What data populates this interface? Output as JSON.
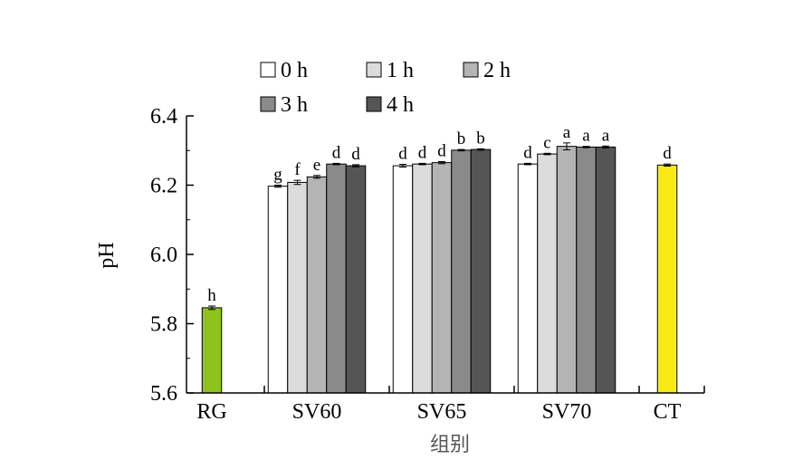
{
  "chart_data": {
    "type": "bar",
    "title": "",
    "xlabel": "组别",
    "ylabel": "pH",
    "ylim": [
      5.6,
      6.4
    ],
    "yticks": [
      "5.6",
      "5.8",
      "6.0",
      "6.2",
      "6.4"
    ],
    "legend_position": "top",
    "series": [
      {
        "name": "0 h",
        "color": "#ffffff"
      },
      {
        "name": "1 h",
        "color": "#dcdcdc"
      },
      {
        "name": "2 h",
        "color": "#b4b4b4"
      },
      {
        "name": "3 h",
        "color": "#8a8a8a"
      },
      {
        "name": "4 h",
        "color": "#555555"
      }
    ],
    "groups": [
      {
        "label": "RG",
        "bars": [
          {
            "series": null,
            "color": "#8dc21f",
            "value": 5.846,
            "err": 0.005,
            "sig": "h"
          }
        ]
      },
      {
        "label": "SV60",
        "bars": [
          {
            "series": "0 h",
            "value": 6.197,
            "err": 0.003,
            "sig": "g"
          },
          {
            "series": "1 h",
            "value": 6.208,
            "err": 0.006,
            "sig": "f"
          },
          {
            "series": "2 h",
            "value": 6.224,
            "err": 0.004,
            "sig": "e"
          },
          {
            "series": "3 h",
            "value": 6.261,
            "err": 0.002,
            "sig": "d"
          },
          {
            "series": "4 h",
            "value": 6.256,
            "err": 0.003,
            "sig": "d"
          }
        ]
      },
      {
        "label": "SV65",
        "bars": [
          {
            "series": "0 h",
            "value": 6.256,
            "err": 0.004,
            "sig": "d"
          },
          {
            "series": "1 h",
            "value": 6.261,
            "err": 0.002,
            "sig": "d"
          },
          {
            "series": "2 h",
            "value": 6.265,
            "err": 0.003,
            "sig": "d"
          },
          {
            "series": "3 h",
            "value": 6.301,
            "err": 0.002,
            "sig": "b"
          },
          {
            "series": "4 h",
            "value": 6.303,
            "err": 0.002,
            "sig": "b"
          }
        ]
      },
      {
        "label": "SV70",
        "bars": [
          {
            "series": "0 h",
            "value": 6.261,
            "err": 0.002,
            "sig": "d"
          },
          {
            "series": "1 h",
            "value": 6.29,
            "err": 0.002,
            "sig": "c"
          },
          {
            "series": "2 h",
            "value": 6.312,
            "err": 0.01,
            "sig": "a"
          },
          {
            "series": "3 h",
            "value": 6.31,
            "err": 0.002,
            "sig": "a"
          },
          {
            "series": "4 h",
            "value": 6.31,
            "err": 0.003,
            "sig": "a"
          }
        ]
      },
      {
        "label": "CT",
        "bars": [
          {
            "series": null,
            "color": "#f7ea14",
            "value": 6.258,
            "err": 0.003,
            "sig": "d"
          }
        ]
      }
    ]
  }
}
